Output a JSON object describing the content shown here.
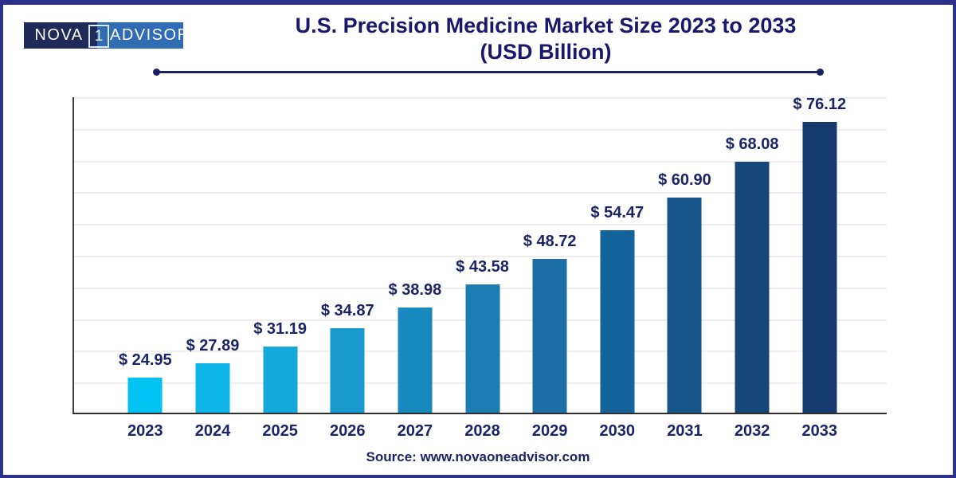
{
  "header": {
    "logo": {
      "part1": "NOVA",
      "number": "1",
      "part2": "ADVISOR"
    },
    "title_line1": "U.S. Precision Medicine Market Size 2023 to 2033",
    "title_line2": "(USD Billion)"
  },
  "chart_data": {
    "type": "bar",
    "title": "U.S. Precision Medicine Market Size 2023 to 2033 (USD Billion)",
    "categories": [
      "2023",
      "2024",
      "2025",
      "2026",
      "2027",
      "2028",
      "2029",
      "2030",
      "2031",
      "2032",
      "2033"
    ],
    "values": [
      24.95,
      27.89,
      31.19,
      34.87,
      38.98,
      43.58,
      48.72,
      54.47,
      60.9,
      68.08,
      76.12
    ],
    "value_labels": [
      "$ 24.95",
      "$ 27.89",
      "$ 31.19",
      "$ 34.87",
      "$ 38.98",
      "$ 43.58",
      "$ 48.72",
      "$ 54.47",
      "$ 60.90",
      "$ 68.08",
      "$ 76.12"
    ],
    "bar_colors": [
      "#00C2F3",
      "#0DB5E8",
      "#14A8DB",
      "#1799CE",
      "#1789BF",
      "#1D7CB1",
      "#1C6FA4",
      "#15639B",
      "#17548A",
      "#174679",
      "#143A6E"
    ],
    "xlabel": "",
    "ylabel": "",
    "ylim": [
      18,
      81
    ],
    "gridline_count": 10,
    "grid": true,
    "legend_position": "none",
    "y_tick_labels_visible": false
  },
  "footer": {
    "source": "Source: www.novaoneadvisor.com"
  },
  "colors": {
    "frame_border": "#2B3189",
    "title_text": "#1B186B",
    "label_text": "#1C2366",
    "gridline": "#EFEDED",
    "axis_line": "#2E2E2E",
    "logo_dark_bg": "#1F2A58",
    "logo_light_bg": "#2F6CB3",
    "underline": "#1B2060"
  }
}
